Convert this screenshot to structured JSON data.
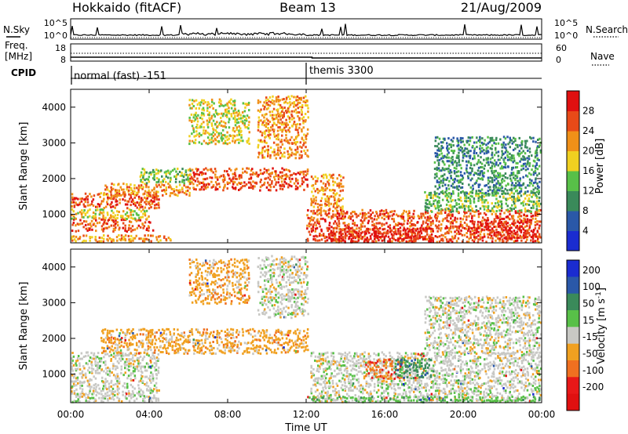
{
  "header": {
    "station": "Hokkaido (fitACF)",
    "beam": "Beam 13",
    "date": "21/Aug/2009"
  },
  "noise_panel": {
    "left_label": "N.Sky",
    "right_label": "N.Search",
    "tick_top": "10^5",
    "tick_bottom": "10^0"
  },
  "freq_panel": {
    "left_label_1": "Freq.",
    "left_label_2": "[MHz]",
    "left_ticks": [
      "18",
      "8"
    ],
    "right_label": "Nave",
    "right_ticks": [
      "60",
      "0"
    ]
  },
  "cpid": {
    "label": "CPID",
    "modes": [
      {
        "name": "normal (fast) -151",
        "start_hour": 0,
        "end_hour": 12
      },
      {
        "name": "themis 3300",
        "start_hour": 12,
        "end_hour": 24
      }
    ]
  },
  "time_axis": {
    "label": "Time UT",
    "ticks": [
      "00:00",
      "04:00",
      "08:00",
      "12:00",
      "16:00",
      "20:00",
      "00:00"
    ]
  },
  "chart_data": [
    {
      "type": "heatmap",
      "name": "power",
      "ylabel": "Slant Range [km]",
      "yticks": [
        1000,
        2000,
        3000,
        4000
      ],
      "ylim": [
        200,
        4500
      ],
      "xlim": [
        0,
        24
      ],
      "colorbar": {
        "label": "Power [dB]",
        "tick_values": [
          4,
          8,
          12,
          16,
          20,
          24,
          28
        ],
        "colors": [
          "#1a2cd0",
          "#2a58a8",
          "#3a8a5a",
          "#58c048",
          "#f0d020",
          "#f09018",
          "#e84a18",
          "#e01010"
        ]
      },
      "bands": [
        {
          "t0": 0.0,
          "t1": 5.0,
          "r0": 250,
          "r1": 450,
          "level": 5
        },
        {
          "t0": 0.0,
          "t1": 4.2,
          "r0": 550,
          "r1": 850,
          "level": 6
        },
        {
          "t0": 0.0,
          "t1": 4.0,
          "r0": 900,
          "r1": 1150,
          "level": 4
        },
        {
          "t0": 0.0,
          "t1": 4.5,
          "r0": 1200,
          "r1": 1600,
          "level": 6
        },
        {
          "t0": 1.5,
          "t1": 6.0,
          "r0": 1550,
          "r1": 1900,
          "level": 5
        },
        {
          "t0": 6.0,
          "t1": 12.0,
          "r0": 1700,
          "r1": 2300,
          "level": 6
        },
        {
          "t0": 3.5,
          "t1": 6.0,
          "r0": 1900,
          "r1": 2300,
          "level": 3
        },
        {
          "t0": 6.0,
          "t1": 9.0,
          "r0": 3000,
          "r1": 4200,
          "level": 4
        },
        {
          "t0": 9.5,
          "t1": 12.0,
          "r0": 2600,
          "r1": 4300,
          "level": 5
        },
        {
          "t0": 12.2,
          "t1": 13.8,
          "r0": 1100,
          "r1": 2100,
          "level": 5
        },
        {
          "t0": 12.0,
          "t1": 24.0,
          "r0": 250,
          "r1": 1100,
          "level": 6
        },
        {
          "t0": 13.0,
          "t1": 18.5,
          "r0": 250,
          "r1": 650,
          "level": 7
        },
        {
          "t0": 20.5,
          "t1": 24.0,
          "r0": 350,
          "r1": 800,
          "level": 7
        },
        {
          "t0": 18.0,
          "t1": 24.0,
          "r0": 1100,
          "r1": 1600,
          "level": 3
        },
        {
          "t0": 18.5,
          "t1": 24.0,
          "r0": 1600,
          "r1": 3200,
          "level": 2
        }
      ]
    },
    {
      "type": "heatmap",
      "name": "velocity",
      "ylabel": "Slant Range [km]",
      "yticks": [
        1000,
        2000,
        3000,
        4000
      ],
      "ylim": [
        200,
        4500
      ],
      "xlim": [
        0,
        24
      ],
      "colorbar": {
        "label": "Velocity [m s^-1]",
        "tick_values": [
          200,
          100,
          50,
          15,
          -15,
          -50,
          -100,
          -200
        ],
        "colors": [
          "#1a2cd0",
          "#2a58a8",
          "#3a8a5a",
          "#58c048",
          "#c8c8c4",
          "#f0a020",
          "#f07020",
          "#e81818",
          "#e01010"
        ]
      },
      "bands": [
        {
          "t0": 0.0,
          "t1": 4.5,
          "r0": 250,
          "r1": 1600,
          "level": 4
        },
        {
          "t0": 1.5,
          "t1": 12.0,
          "r0": 1600,
          "r1": 2300,
          "level": 5
        },
        {
          "t0": 6.0,
          "t1": 9.0,
          "r0": 3000,
          "r1": 4200,
          "level": 5
        },
        {
          "t0": 9.5,
          "t1": 12.0,
          "r0": 2600,
          "r1": 4300,
          "level": 4
        },
        {
          "t0": 12.2,
          "t1": 24.0,
          "r0": 250,
          "r1": 1600,
          "level": 4
        },
        {
          "t0": 15.0,
          "t1": 17.0,
          "r0": 900,
          "r1": 1400,
          "level": 6
        },
        {
          "t0": 16.5,
          "t1": 18.5,
          "r0": 900,
          "r1": 1400,
          "level": 2
        },
        {
          "t0": 18.0,
          "t1": 24.0,
          "r0": 1600,
          "r1": 3200,
          "level": 4
        },
        {
          "t0": 12.0,
          "t1": 24.0,
          "r0": 200,
          "r1": 350,
          "level": 3
        }
      ]
    }
  ]
}
